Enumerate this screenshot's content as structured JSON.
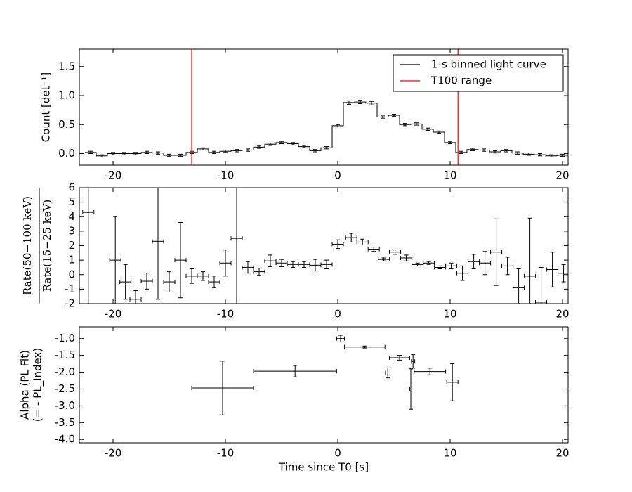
{
  "chart_data": [
    {
      "type": "step",
      "ylabel": "Count [det⁻¹]",
      "x": [
        -22,
        -21,
        -20,
        -19,
        -18,
        -17,
        -16,
        -15,
        -14,
        -13,
        -12,
        -11,
        -10,
        -9,
        -8,
        -7,
        -6,
        -5,
        -4,
        -3,
        -2,
        -1,
        0,
        1,
        2,
        3,
        4,
        5,
        6,
        7,
        8,
        9,
        10,
        11,
        12,
        13,
        14,
        15,
        16,
        17,
        18,
        19,
        20
      ],
      "series": [
        {
          "name": "1-s binned light curve",
          "color": "#000000",
          "values": [
            0.02,
            -0.04,
            0.0,
            0.0,
            0.0,
            0.02,
            0.01,
            -0.03,
            -0.03,
            0.02,
            0.08,
            0.02,
            0.04,
            0.05,
            0.06,
            0.11,
            0.16,
            0.19,
            0.17,
            0.12,
            0.05,
            0.1,
            0.48,
            0.88,
            0.89,
            0.87,
            0.63,
            0.66,
            0.5,
            0.51,
            0.42,
            0.37,
            0.19,
            0.02,
            0.07,
            0.06,
            0.03,
            0.05,
            0.01,
            -0.01,
            -0.02,
            -0.04,
            -0.03
          ],
          "errors": [
            0.02,
            0.02,
            0.02,
            0.02,
            0.02,
            0.02,
            0.02,
            0.02,
            0.02,
            0.02,
            0.02,
            0.02,
            0.02,
            0.02,
            0.02,
            0.02,
            0.02,
            0.02,
            0.02,
            0.02,
            0.02,
            0.02,
            0.02,
            0.03,
            0.03,
            0.03,
            0.02,
            0.02,
            0.02,
            0.02,
            0.02,
            0.02,
            0.02,
            0.02,
            0.02,
            0.02,
            0.02,
            0.02,
            0.02,
            0.02,
            0.02,
            0.02,
            0.02
          ]
        }
      ],
      "vlines": {
        "name": "T100 range",
        "color": "#ff0000",
        "values": [
          -13.0,
          10.7
        ]
      },
      "legend": "upper right",
      "xlim": [
        -23,
        20.5
      ],
      "xticks": [
        -20,
        -10,
        0,
        10,
        20
      ],
      "ylim": [
        -0.2,
        1.8
      ],
      "yticks": [
        {
          "value": 0,
          "label": "0.0"
        },
        0.5,
        {
          "value": 1,
          "label": "1.0"
        },
        1.5
      ]
    },
    {
      "type": "errorbar",
      "ylabel": [
        "Rate(50−100 keV)",
        "Rate(15−25 keV)"
      ],
      "x": [
        -22.2,
        -19.8,
        -18.9,
        -18.0,
        -17.0,
        -16.0,
        -15.0,
        -14.0,
        -13.0,
        -12.0,
        -11.0,
        -10.0,
        -9.0,
        -8.0,
        -7.0,
        -6.0,
        -5.0,
        -4.0,
        -3.0,
        -2.0,
        -1.0,
        0.0,
        1.2,
        2.2,
        3.2,
        4.1,
        5.1,
        6.1,
        7.1,
        8.1,
        9.1,
        10.1,
        11.1,
        12.1,
        13.1,
        14.1,
        15.1,
        16.1,
        17.1,
        18.1,
        19.1,
        20.1
      ],
      "xerr": [
        0.5,
        0.5,
        0.5,
        0.5,
        0.5,
        0.5,
        0.5,
        0.5,
        0.5,
        0.5,
        0.5,
        0.5,
        0.5,
        0.5,
        0.5,
        0.5,
        0.5,
        0.5,
        0.5,
        0.5,
        0.5,
        0.5,
        0.5,
        0.5,
        0.5,
        0.5,
        0.5,
        0.5,
        0.5,
        0.5,
        0.5,
        0.5,
        0.5,
        0.5,
        0.5,
        0.5,
        0.5,
        0.5,
        0.5,
        0.5,
        0.5,
        0.5
      ],
      "values": [
        4.3,
        1.0,
        -0.5,
        -1.7,
        -0.45,
        2.3,
        -0.5,
        1.0,
        -0.1,
        -0.1,
        -0.5,
        0.8,
        2.5,
        0.5,
        0.2,
        0.95,
        0.8,
        0.7,
        0.7,
        0.65,
        0.7,
        2.1,
        2.55,
        2.25,
        1.75,
        1.05,
        1.55,
        1.15,
        0.7,
        0.8,
        0.5,
        0.6,
        0.1,
        0.9,
        0.8,
        1.55,
        0.6,
        -0.9,
        -0.1,
        -1.9,
        0.35,
        0.1
      ],
      "errors": [
        7,
        3.0,
        1.2,
        0.6,
        0.55,
        4,
        0.7,
        2.6,
        0.5,
        0.3,
        0.4,
        0.9,
        4.5,
        0.4,
        0.25,
        0.4,
        0.25,
        0.2,
        0.2,
        0.4,
        0.3,
        0.3,
        0.3,
        0.2,
        0.15,
        0.1,
        0.15,
        0.2,
        0.1,
        0.1,
        0.1,
        0.2,
        0.5,
        0.5,
        0.8,
        2.3,
        0.6,
        1.3,
        4,
        2.4,
        1.2,
        0.6
      ],
      "color": "#000000",
      "xlim": [
        -23,
        20.5
      ],
      "xticks": [
        -20,
        -10,
        0,
        10,
        20
      ],
      "ylim": [
        -2,
        6
      ],
      "yticks": [
        -2,
        -1,
        0,
        1,
        2,
        3,
        4,
        5,
        6
      ]
    },
    {
      "type": "errorbar",
      "ylabel": [
        "Alpha (PL Fit)",
        "(= - PL_Index)"
      ],
      "xlabel": "Time since T0 [s]",
      "x": [
        -10.25,
        -3.8,
        0.25,
        2.4,
        4.45,
        5.5,
        6.5,
        6.7,
        8.2,
        10.2
      ],
      "xerr": [
        2.75,
        3.7,
        0.35,
        1.8,
        0.2,
        0.9,
        0.1,
        0.15,
        1.4,
        0.5
      ],
      "values": [
        -2.47,
        -1.97,
        -1.0,
        -1.25,
        -2.02,
        -1.57,
        -2.5,
        -1.68,
        -1.98,
        -2.3
      ],
      "errors": [
        0.8,
        0.17,
        0.1,
        0.03,
        0.15,
        0.07,
        0.6,
        0.2,
        0.1,
        0.55
      ],
      "color": "#000000",
      "xlim": [
        -23,
        20.5
      ],
      "xticks": [
        -20,
        -10,
        0,
        10,
        20
      ],
      "ylim": [
        -4.1,
        -0.65
      ],
      "yticks": [
        {
          "value": -4,
          "label": "-4.0"
        },
        -3.5,
        {
          "value": -3,
          "label": "-3.0"
        },
        -2.5,
        {
          "value": -2,
          "label": "-2.0"
        },
        -1.5,
        {
          "value": -1,
          "label": "-1.0"
        }
      ]
    }
  ]
}
